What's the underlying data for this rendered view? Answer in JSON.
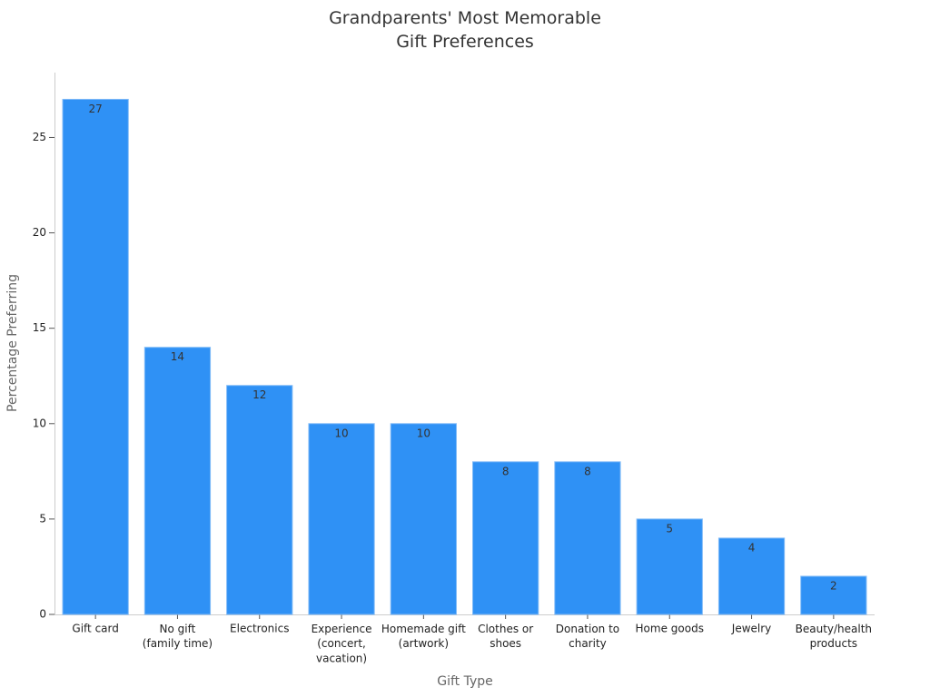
{
  "chart_data": {
    "type": "bar",
    "title": "Grandparents' Most Memorable\nGift Preferences",
    "x_label": "Gift Type",
    "y_label": "Percentage Preferring",
    "categories": [
      "Gift card",
      "No gift\n(family time)",
      "Electronics",
      "Experience\n(concert,\nvacation)",
      "Homemade gift\n(artwork)",
      "Clothes or\nshoes",
      "Donation to\ncharity",
      "Home goods",
      "Jewelry",
      "Beauty/health\nproducts"
    ],
    "values": [
      27,
      14,
      12,
      10,
      10,
      8,
      8,
      5,
      4,
      2
    ],
    "color": "#2f91f5",
    "ylim": [
      0,
      28.4
    ],
    "yticks": [
      0,
      5,
      10,
      15,
      20,
      25
    ],
    "grid": false
  }
}
